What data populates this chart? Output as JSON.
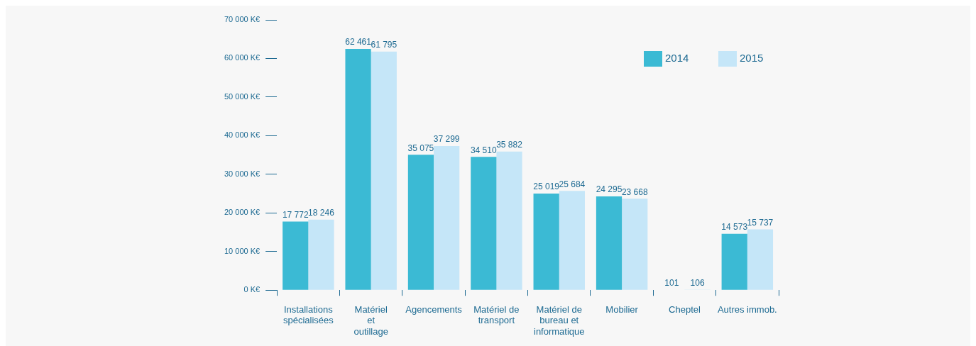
{
  "chart_data": {
    "type": "bar",
    "categories": [
      "Installations\nspécialisées",
      "Matériel\net\noutillage",
      "Agencements",
      "Matériel de\ntransport",
      "Matériel de\nbureau et\ninformatique",
      "Mobilier",
      "Cheptel",
      "Autres immob."
    ],
    "series": [
      {
        "name": "2014",
        "color": "#3bbad4",
        "values": [
          17772,
          62461,
          35075,
          34510,
          25019,
          24295,
          101,
          14573
        ],
        "value_labels": [
          "17 772",
          "62 461",
          "35 075",
          "34 510",
          "25 019",
          "24 295",
          "101",
          "14 573"
        ]
      },
      {
        "name": "2015",
        "color": "#c5e6f8",
        "values": [
          18246,
          61795,
          37299,
          35882,
          25684,
          23668,
          106,
          15737
        ],
        "value_labels": [
          "18 246",
          "61 795",
          "37 299",
          "35 882",
          "25 684",
          "23 668",
          "106",
          "15 737"
        ]
      }
    ],
    "ylim": [
      0,
      70000
    ],
    "yticks": [
      {
        "value": 0,
        "label": "0 K€"
      },
      {
        "value": 10000,
        "label": "10 000 K€"
      },
      {
        "value": 20000,
        "label": "20 000 K€"
      },
      {
        "value": 30000,
        "label": "30 000 K€"
      },
      {
        "value": 40000,
        "label": "40 000 K€"
      },
      {
        "value": 50000,
        "label": "50 000 K€"
      },
      {
        "value": 60000,
        "label": "60 000 K€"
      },
      {
        "value": 70000,
        "label": "70 000 K€"
      }
    ],
    "grid": false,
    "legend": "top right"
  }
}
